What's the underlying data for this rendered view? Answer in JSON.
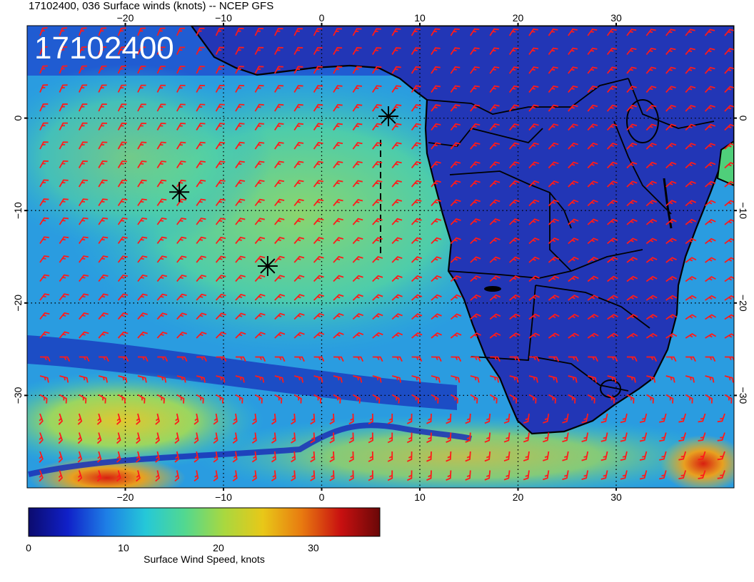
{
  "title": "17102400, 036 Surface winds (knots) -- NCEP GFS",
  "stamp": "17102400",
  "colors": {
    "barb": "#ff1a1a",
    "coast": "#000000",
    "ocean_calm": "#1c2fb8",
    "ocean_mid": "#27c9c9",
    "ocean_strong": "#86d36a",
    "land": "#2338b5"
  },
  "map": {
    "lon_range": [
      -30,
      42
    ],
    "lat_range": [
      -40,
      10
    ],
    "x_ticks": [
      "−20",
      "−10",
      "0",
      "10",
      "20",
      "30"
    ],
    "x_tick_values": [
      -20,
      -10,
      0,
      10,
      20,
      30
    ],
    "y_ticks": [
      "0",
      "−10",
      "−20",
      "−30"
    ],
    "y_tick_values": [
      0,
      -10,
      -20,
      -30
    ],
    "grid": "dotted"
  },
  "markers": [
    {
      "name": "asterisk-1",
      "lon": 6.8,
      "lat": 0.2
    },
    {
      "name": "asterisk-2",
      "lon": -14.5,
      "lat": -8.0
    },
    {
      "name": "asterisk-3",
      "lon": -5.5,
      "lat": -16.0
    }
  ],
  "colorbar": {
    "label": "Surface Wind Speed, knots",
    "min": 0,
    "max": 37,
    "ticks": [
      "0",
      "10",
      "20",
      "30"
    ],
    "tick_values": [
      0,
      10,
      20,
      30
    ],
    "stops": [
      "#0b0b6e",
      "#1020c8",
      "#1e7fe6",
      "#25c8d8",
      "#52d890",
      "#a8d840",
      "#e8c818",
      "#e87a10",
      "#c81010",
      "#6a0808"
    ]
  }
}
